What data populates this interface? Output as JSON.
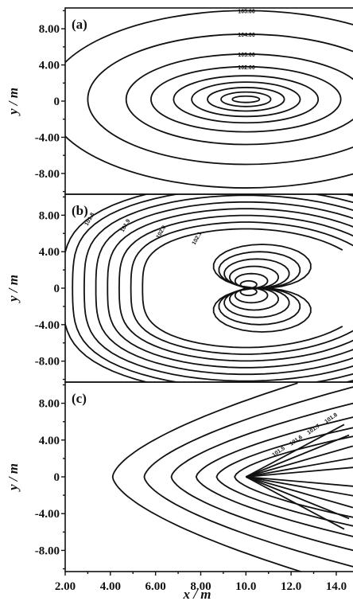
{
  "chart_data": [
    {
      "type": "contour",
      "panel_label": "(a)",
      "xlabel": "x / m",
      "ylabel": "y / m",
      "xlim": [
        2.0,
        15.0
      ],
      "ylim": [
        -10.0,
        10.0
      ],
      "x_ticks": [
        "2.00",
        "4.00",
        "6.00",
        "8.00",
        "10.0",
        "12.0",
        "14.0"
      ],
      "y_ticks": [
        "8.00",
        "4.00",
        "0",
        "-4.00",
        "-8.00"
      ],
      "source": {
        "x": 10.0,
        "y": 0.2
      },
      "contours": [
        {
          "rx": 0.6,
          "ry": 0.35,
          "label": ""
        },
        {
          "rx": 1.1,
          "ry": 0.8,
          "label": ""
        },
        {
          "rx": 1.7,
          "ry": 1.3,
          "label": ""
        },
        {
          "rx": 2.4,
          "ry": 1.9,
          "label": ""
        },
        {
          "rx": 3.2,
          "ry": 2.6,
          "label": ""
        },
        {
          "rx": 4.2,
          "ry": 3.6,
          "label": "102.00"
        },
        {
          "rx": 5.3,
          "ry": 5.0,
          "label": "103.00"
        },
        {
          "rx": 7.0,
          "ry": 7.2,
          "label": "104.00"
        },
        {
          "rx": 8.8,
          "ry": 9.8,
          "label": "105.00"
        }
      ]
    },
    {
      "type": "contour",
      "panel_label": "(b)",
      "xlabel": "x / m",
      "ylabel": "y / m",
      "xlim": [
        2.0,
        15.0
      ],
      "ylim": [
        -10.0,
        10.0
      ],
      "x_ticks": [
        "2.00",
        "4.00",
        "6.00",
        "8.00",
        "10.0",
        "12.0",
        "14.0"
      ],
      "y_ticks": [
        "8.00",
        "4.00",
        "0",
        "-4.00",
        "-8.00"
      ],
      "source": {
        "x": 10.0,
        "y": 0.0
      },
      "dipole_scales": [
        0.8,
        1.6,
        2.4,
        3.2,
        4.0,
        4.8
      ],
      "outer_contours": [
        6.2,
        6.9,
        7.6,
        8.3,
        9.0,
        9.7,
        10.4,
        11.0
      ],
      "labels": [
        "101.8",
        "101.9",
        "102.0",
        "102.1"
      ]
    },
    {
      "type": "contour",
      "panel_label": "(c)",
      "xlabel": "x / m",
      "ylabel": "y / m",
      "xlim": [
        2.0,
        15.0
      ],
      "ylim": [
        -10.0,
        10.0
      ],
      "x_ticks": [
        "2.00",
        "4.00",
        "6.00",
        "8.00",
        "10.0",
        "12.0",
        "14.0"
      ],
      "y_ticks": [
        "8.00",
        "4.00",
        "0",
        "-4.00",
        "-8.00"
      ],
      "source": {
        "x": 10.0,
        "y": 0.0
      },
      "contour_offsets": [
        0.5,
        1.3,
        2.2,
        3.3,
        4.5,
        5.9
      ],
      "ray_angles_deg": [
        -28,
        -22,
        -16,
        -10,
        -5,
        5,
        10,
        16,
        22,
        28
      ],
      "labels": [
        "101.5",
        "101.6",
        "101.7",
        "101.8"
      ]
    }
  ],
  "axis_title": "x / m"
}
